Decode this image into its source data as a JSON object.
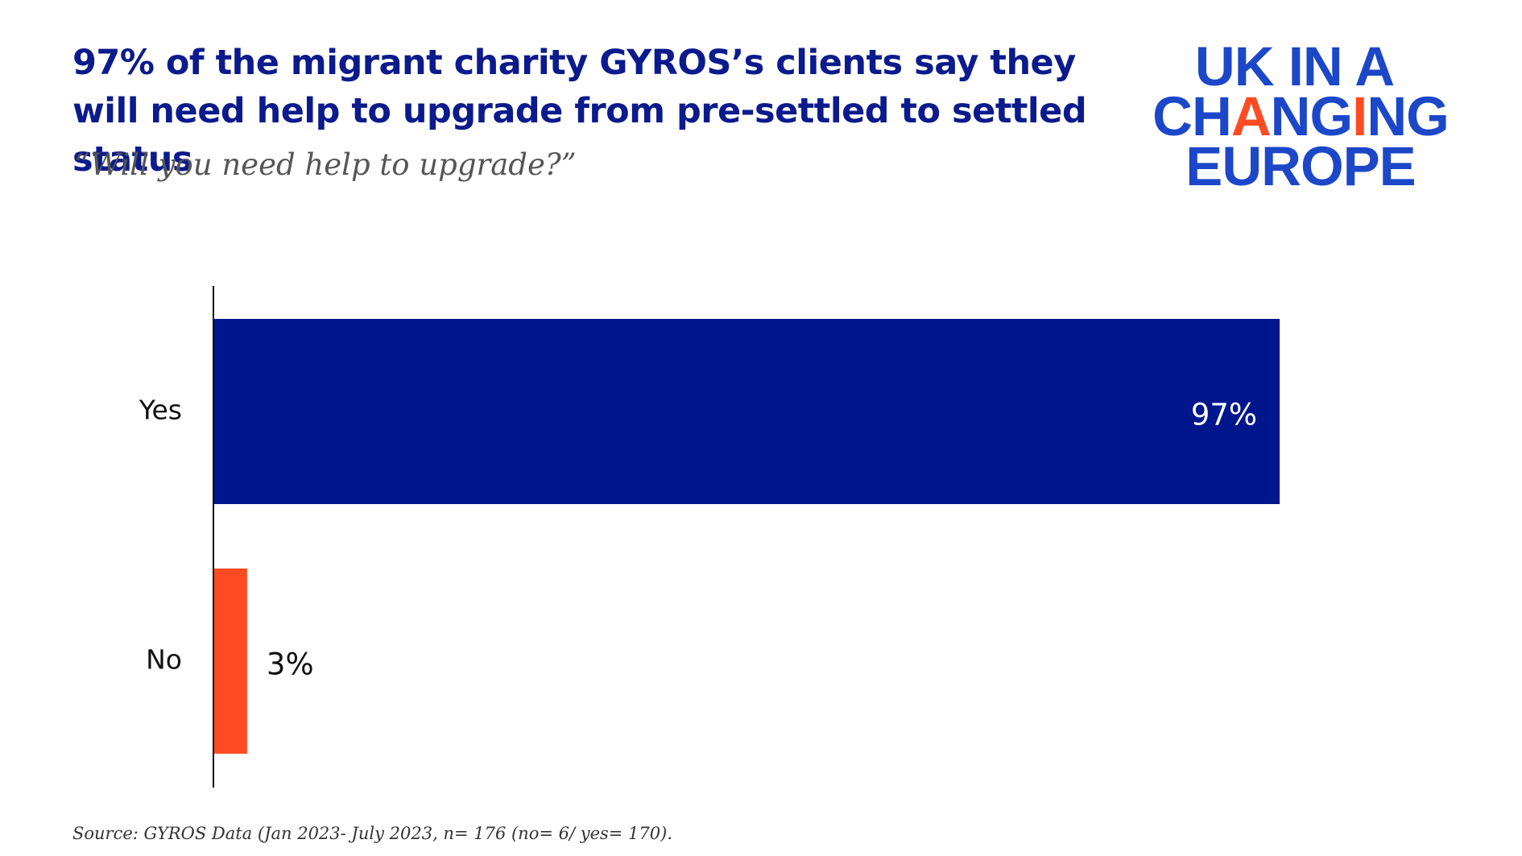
{
  "title": "97% of the migrant charity GYROS’s clients say they will need help to upgrade from pre-settled to settled status",
  "subtitle": "“Will you need help to upgrade?”",
  "source": "Source: GYROS Data (Jan 2023- July 2023, n= 176 (no= 6/ yes= 170).",
  "logo": {
    "line1": "UK IN A",
    "line2_parts": [
      "CH",
      "A",
      "NG",
      "I",
      "NG"
    ],
    "line3": "EUROPE",
    "color": "#1c47c9",
    "accent_color": "#ff4b22"
  },
  "colors": {
    "title": "#0b1a8c",
    "yes_bar": "#00168c",
    "no_bar": "#ff4b22",
    "value_on_bar": "#ffffff",
    "value_outside": "#111111"
  },
  "chart_data": {
    "type": "bar",
    "orientation": "horizontal",
    "categories": [
      "Yes",
      "No"
    ],
    "values": [
      97,
      3
    ],
    "value_labels": [
      "97%",
      "3%"
    ],
    "xlim": [
      0,
      100
    ],
    "title": "97% of the migrant charity GYROS’s clients say they will need help to upgrade from pre-settled to settled status",
    "subtitle": "“Will you need help to upgrade?”",
    "xlabel": "",
    "ylabel": "",
    "grid": false,
    "legend": "none"
  }
}
